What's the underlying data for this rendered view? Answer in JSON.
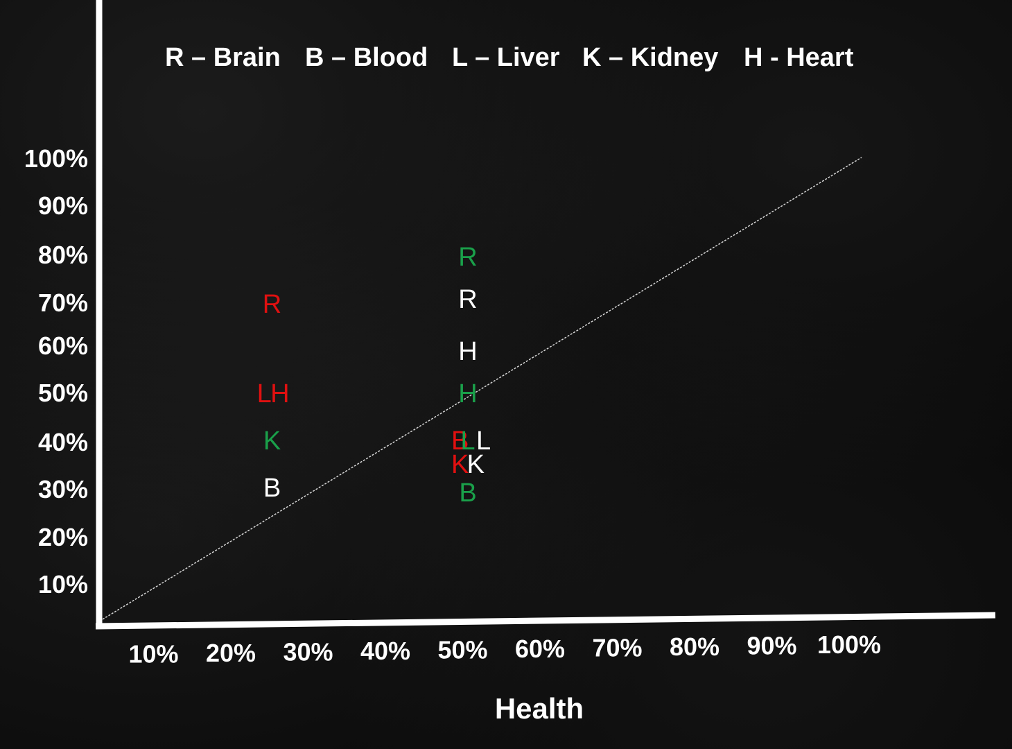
{
  "chart_data": {
    "type": "scatter",
    "legend": [
      {
        "key": "R",
        "label": "R – Brain"
      },
      {
        "key": "B",
        "label": "B – Blood"
      },
      {
        "key": "L",
        "label": "L – Liver"
      },
      {
        "key": "K",
        "label": "K – Kidney"
      },
      {
        "key": "H",
        "label": "H - Heart"
      }
    ],
    "xlabel": "Health",
    "ylabel": "",
    "x_ticks": [
      "10%",
      "20%",
      "30%",
      "40%",
      "50%",
      "60%",
      "70%",
      "80%",
      "90%",
      "100%"
    ],
    "y_ticks": [
      "10%",
      "20%",
      "30%",
      "40%",
      "50%",
      "60%",
      "70%",
      "80%",
      "90%",
      "100%"
    ],
    "xlim": [
      0,
      100
    ],
    "ylim": [
      0,
      100
    ],
    "reference_line": {
      "from": [
        0,
        0
      ],
      "to": [
        100,
        100
      ]
    },
    "colors": {
      "red": "#e01010",
      "green": "#1aa04a",
      "white": "#ffffff"
    },
    "points": [
      {
        "letter": "R",
        "x": 25,
        "y": 69,
        "color": "red"
      },
      {
        "letter": "L",
        "x": 24,
        "y": 50,
        "color": "red"
      },
      {
        "letter": "H",
        "x": 26,
        "y": 50,
        "color": "red"
      },
      {
        "letter": "K",
        "x": 25,
        "y": 40,
        "color": "green"
      },
      {
        "letter": "B",
        "x": 25,
        "y": 30,
        "color": "white"
      },
      {
        "letter": "R",
        "x": 50,
        "y": 79,
        "color": "green"
      },
      {
        "letter": "R",
        "x": 50,
        "y": 70,
        "color": "white"
      },
      {
        "letter": "H",
        "x": 50,
        "y": 59,
        "color": "white"
      },
      {
        "letter": "H",
        "x": 50,
        "y": 50,
        "color": "green"
      },
      {
        "letter": "B",
        "x": 49,
        "y": 40,
        "color": "red"
      },
      {
        "letter": "L",
        "x": 50,
        "y": 40,
        "color": "green"
      },
      {
        "letter": "L",
        "x": 52,
        "y": 40,
        "color": "white"
      },
      {
        "letter": "K",
        "x": 49,
        "y": 35,
        "color": "red"
      },
      {
        "letter": "K",
        "x": 51,
        "y": 35,
        "color": "white"
      },
      {
        "letter": "B",
        "x": 50,
        "y": 29,
        "color": "green"
      }
    ]
  }
}
